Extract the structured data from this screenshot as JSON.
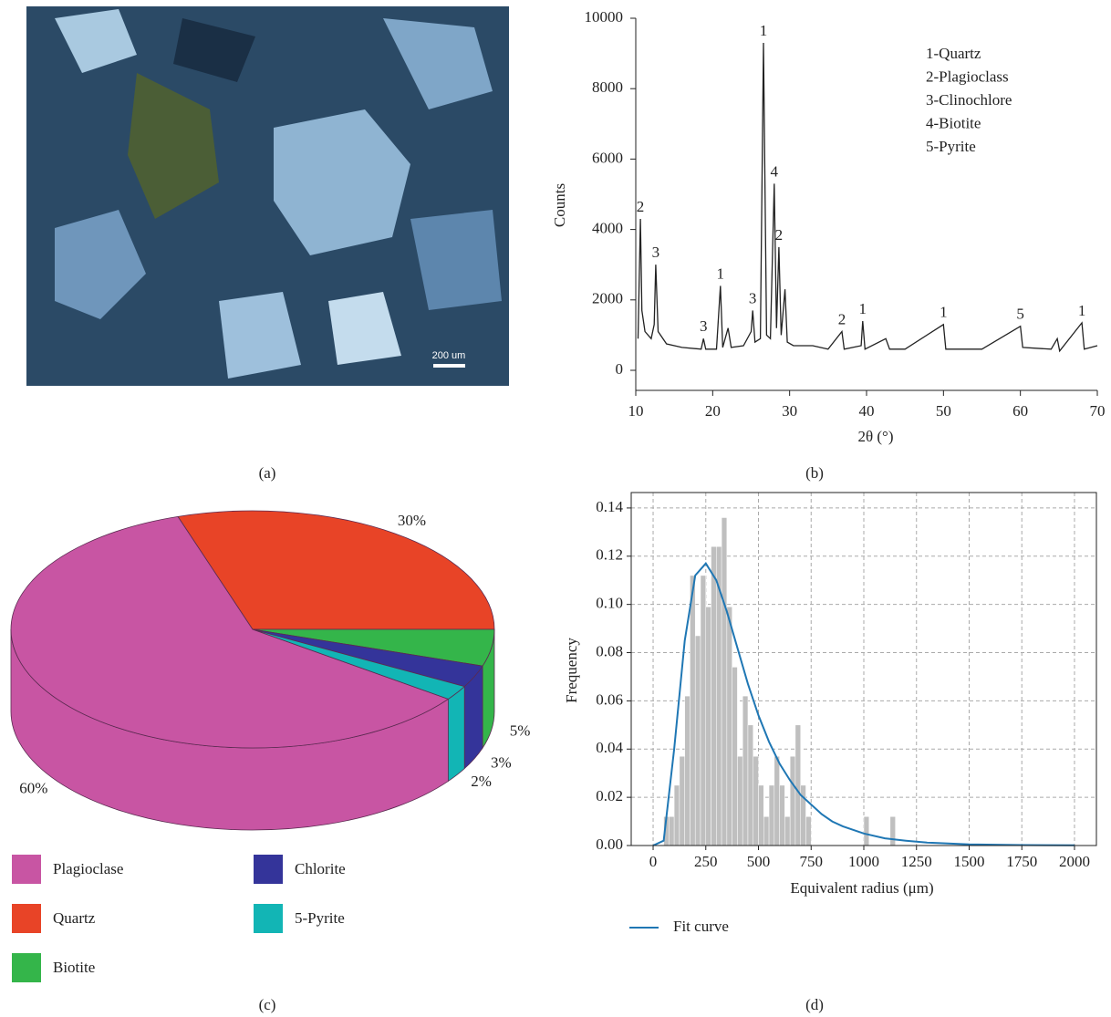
{
  "image": {
    "scale_bar": "200 um",
    "caption": "(a)"
  },
  "chart_data": [
    {
      "type": "line",
      "caption": "(b)",
      "x_label": "2θ (°)",
      "y_label": "Counts",
      "color": "#222222",
      "x": [
        10.3,
        10.6,
        10.8,
        11.2,
        12.0,
        12.4,
        12.6,
        12.9,
        14,
        16,
        18.5,
        18.8,
        19.1,
        20.5,
        21.0,
        21.3,
        22,
        22.4,
        24,
        25,
        25.2,
        25.5,
        26.2,
        26.6,
        27.0,
        27.5,
        28.0,
        28.3,
        28.6,
        28.9,
        29.4,
        29.7,
        30.5,
        33,
        35,
        36.8,
        37.1,
        39.3,
        39.5,
        39.8,
        42.5,
        43,
        45,
        50.0,
        50.3,
        55,
        60.0,
        60.3,
        64,
        64.8,
        65.1,
        68.0,
        68.3,
        70
      ],
      "values": [
        900,
        4300,
        1700,
        1100,
        900,
        1300,
        3000,
        1100,
        750,
        650,
        600,
        900,
        600,
        600,
        2400,
        650,
        1200,
        650,
        700,
        1100,
        1700,
        800,
        900,
        9300,
        1000,
        900,
        5300,
        1200,
        3500,
        1000,
        2300,
        800,
        700,
        700,
        600,
        1100,
        600,
        700,
        1400,
        600,
        900,
        600,
        600,
        1300,
        600,
        600,
        1250,
        650,
        600,
        900,
        550,
        1350,
        600,
        700
      ],
      "xlim": [
        10,
        70
      ],
      "ylim": [
        -570,
        10000
      ],
      "xticks": [
        10,
        20,
        30,
        40,
        50,
        60,
        70
      ],
      "yticks": [
        0,
        2000,
        4000,
        6000,
        8000,
        10000
      ],
      "annotations": [
        {
          "text": "2",
          "x": 10.6,
          "y": 4300
        },
        {
          "text": "3",
          "x": 12.6,
          "y": 3000
        },
        {
          "text": "3",
          "x": 18.8,
          "y": 900
        },
        {
          "text": "1",
          "x": 21.0,
          "y": 2400
        },
        {
          "text": "3",
          "x": 25.2,
          "y": 1700
        },
        {
          "text": "1",
          "x": 26.6,
          "y": 9300
        },
        {
          "text": "4",
          "x": 28.0,
          "y": 5300
        },
        {
          "text": "2",
          "x": 28.6,
          "y": 3500
        },
        {
          "text": "2",
          "x": 36.8,
          "y": 1100
        },
        {
          "text": "1",
          "x": 39.5,
          "y": 1400
        },
        {
          "text": "1",
          "x": 50.0,
          "y": 1300
        },
        {
          "text": "5",
          "x": 60.0,
          "y": 1250
        },
        {
          "text": "1",
          "x": 68.0,
          "y": 1350
        }
      ],
      "peak_legend": [
        "1-Quartz",
        "2-Plagioclass",
        "3-Clinochlore",
        "4-Biotite",
        "5-Pyrite"
      ]
    },
    {
      "type": "pie",
      "caption": "(c)",
      "three_d": true,
      "categories": [
        "Plagioclase",
        "Quartz",
        "Biotite",
        "Chlorite",
        "5-Pyrite"
      ],
      "values": [
        60,
        30,
        5,
        3,
        2
      ],
      "value_labels": [
        "60%",
        "30%",
        "5%",
        "3%",
        "2%"
      ],
      "colors": [
        "#c855a3",
        "#e84427",
        "#34b54a",
        "#34349a",
        "#12b5b5"
      ]
    },
    {
      "type": "histogram",
      "caption": "(d)",
      "x_label": "Equivalent radius (μm)",
      "y_label": "Frequency",
      "color": "#bfbfbf",
      "grid": true,
      "bins": [
        50,
        75,
        100,
        125,
        150,
        175,
        200,
        225,
        250,
        275,
        300,
        325,
        350,
        375,
        400,
        425,
        450,
        475,
        500,
        525,
        550,
        575,
        600,
        625,
        650,
        675,
        700,
        725,
        750,
        775,
        800,
        825,
        850,
        875,
        900,
        925,
        950,
        975,
        1000,
        1025,
        1050,
        1075,
        1100,
        1125,
        1150
      ],
      "values": [
        0.012,
        0.012,
        0.025,
        0.037,
        0.062,
        0.112,
        0.087,
        0.112,
        0.099,
        0.124,
        0.124,
        0.136,
        0.099,
        0.074,
        0.037,
        0.062,
        0.05,
        0.037,
        0.025,
        0.012,
        0.025,
        0.037,
        0.025,
        0.012,
        0.037,
        0.05,
        0.025,
        0.012,
        0,
        0,
        0,
        0,
        0,
        0,
        0,
        0,
        0,
        0,
        0.012,
        0,
        0,
        0,
        0,
        0.012
      ],
      "series": [
        {
          "name": "Fit curve",
          "color": "#1f77b4",
          "x": [
            0,
            50,
            100,
            150,
            200,
            250,
            300,
            350,
            400,
            450,
            500,
            550,
            600,
            650,
            700,
            750,
            800,
            850,
            900,
            1000,
            1100,
            1200,
            1300,
            1500,
            1750,
            2000
          ],
          "values": [
            0,
            0.002,
            0.04,
            0.085,
            0.112,
            0.117,
            0.11,
            0.097,
            0.082,
            0.067,
            0.054,
            0.043,
            0.034,
            0.027,
            0.021,
            0.017,
            0.013,
            0.01,
            0.008,
            0.005,
            0.003,
            0.002,
            0.0012,
            0.0005,
            0.0002,
            0.0001
          ]
        }
      ],
      "xlim": [
        -104,
        2104
      ],
      "ylim": [
        0,
        0.1464
      ],
      "xticks": [
        0,
        250,
        500,
        750,
        1000,
        1250,
        1500,
        1750,
        2000
      ],
      "yticks": [
        {
          "value": 0,
          "label": "0.00"
        },
        {
          "value": 0.02,
          "label": "0.02"
        },
        {
          "value": 0.04,
          "label": "0.04"
        },
        {
          "value": 0.06,
          "label": "0.06"
        },
        {
          "value": 0.08,
          "label": "0.08"
        },
        {
          "value": 0.1,
          "label": "0.10"
        },
        {
          "value": 0.12,
          "label": "0.12"
        },
        {
          "value": 0.14,
          "label": "0.14"
        }
      ]
    }
  ]
}
